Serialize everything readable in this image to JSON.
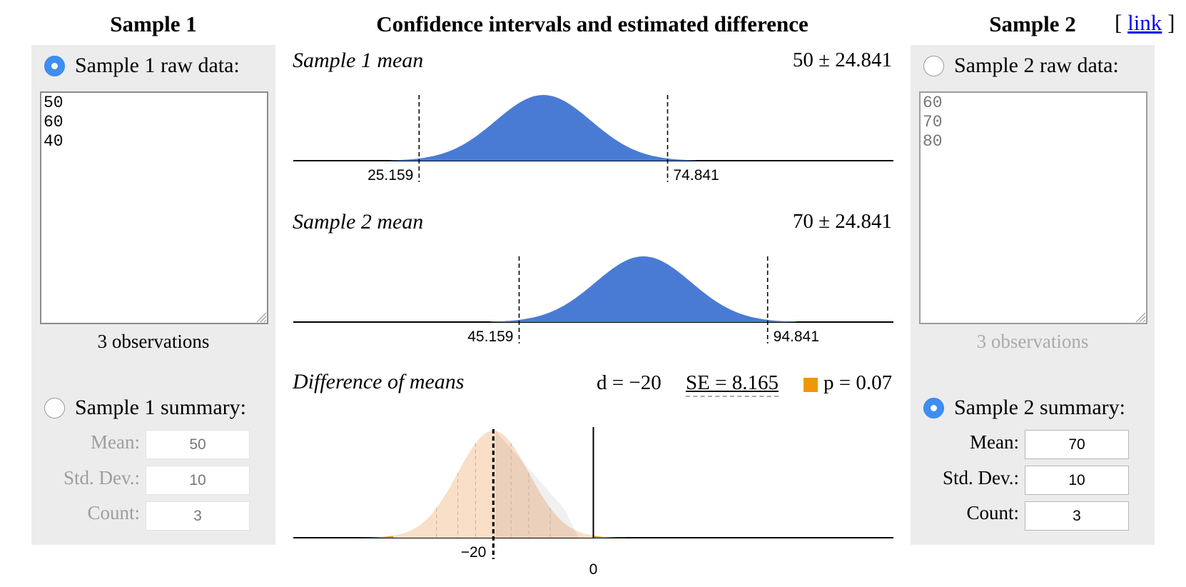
{
  "headings": {
    "sample1": "Sample 1",
    "center": "Confidence intervals and estimated difference",
    "sample2": "Sample 2",
    "link_open": "[",
    "link": "link",
    "link_close": "]"
  },
  "sample1": {
    "raw_label": "Sample 1 raw data:",
    "raw_selected": true,
    "raw_data": "50\n60\n40",
    "observations": "3 observations",
    "summary_label": "Sample 1 summary:",
    "summary_selected": false,
    "mean_label": "Mean:",
    "mean": "50",
    "sd_label": "Std. Dev.:",
    "sd": "10",
    "count_label": "Count:",
    "count": "3"
  },
  "sample2": {
    "raw_label": "Sample 2 raw data:",
    "raw_selected": false,
    "raw_data": "60\n70\n80",
    "observations": "3 observations",
    "summary_label": "Sample 2 summary:",
    "summary_selected": true,
    "mean_label": "Mean:",
    "mean": "70",
    "sd_label": "Std. Dev.:",
    "sd": "10",
    "count_label": "Count:",
    "count": "3"
  },
  "colors": {
    "accent_blue": "#3d8ef0",
    "ci_fill": "#4a7bd4",
    "p_orange": "#f0960c",
    "null_fill": "#fadfc8",
    "link": "#0000ee"
  },
  "chart_data": [
    {
      "type": "area",
      "title": "Sample 1 mean",
      "value_text": "50 ± 24.841",
      "mean": 50,
      "ci": [
        25.159,
        74.841
      ],
      "ci_labels": [
        "25.159",
        "74.841"
      ],
      "xlim": [
        0,
        120
      ]
    },
    {
      "type": "area",
      "title": "Sample 2 mean",
      "value_text": "70 ± 24.841",
      "mean": 70,
      "ci": [
        45.159,
        94.841
      ],
      "ci_labels": [
        "45.159",
        "94.841"
      ],
      "xlim": [
        0,
        120
      ]
    },
    {
      "type": "area",
      "title": "Difference of means",
      "d_text": "d = −20",
      "se_text": "SE = 8.165",
      "p_text": "p = 0.07",
      "d": -20,
      "se": 8.165,
      "xlim": [
        -60,
        60
      ],
      "tick_labels": [
        "−20",
        "0"
      ]
    }
  ]
}
